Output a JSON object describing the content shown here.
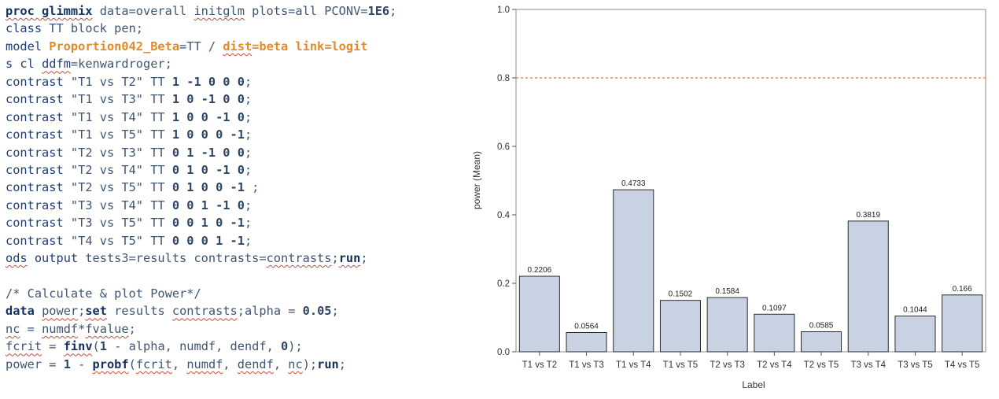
{
  "code": {
    "lines": [
      [
        {
          "t": "proc glimmix",
          "c": "kw sq"
        },
        {
          "t": " data=overall ",
          "c": "tx"
        },
        {
          "t": "initglm",
          "c": "tx sq"
        },
        {
          "t": " plots=all PCONV=",
          "c": "tx"
        },
        {
          "t": "1E6",
          "c": "num"
        },
        {
          "t": ";",
          "c": "tx"
        }
      ],
      [
        {
          "t": "class",
          "c": "blu"
        },
        {
          "t": " TT block pen;",
          "c": "tx"
        }
      ],
      [
        {
          "t": "model ",
          "c": "blu"
        },
        {
          "t": "Proportion042_Beta",
          "c": "or"
        },
        {
          "t": "=TT / ",
          "c": "tx"
        },
        {
          "t": "dist",
          "c": "or sq"
        },
        {
          "t": "=beta link=logit",
          "c": "or"
        }
      ],
      [
        {
          "t": "s cl ",
          "c": "blu"
        },
        {
          "t": "ddfm",
          "c": "blu sq"
        },
        {
          "t": "=kenwardroger;",
          "c": "tx"
        }
      ],
      [
        {
          "t": "contrast",
          "c": "blu"
        },
        {
          "t": " \"T1 vs T2\" TT ",
          "c": "tx"
        },
        {
          "t": "1 -1 0 0 0",
          "c": "num"
        },
        {
          "t": ";",
          "c": "tx"
        }
      ],
      [
        {
          "t": "contrast",
          "c": "blu"
        },
        {
          "t": " \"T1 vs T3\" TT ",
          "c": "tx"
        },
        {
          "t": "1 0 -1 0 0",
          "c": "num"
        },
        {
          "t": ";",
          "c": "tx"
        }
      ],
      [
        {
          "t": "contrast",
          "c": "blu"
        },
        {
          "t": " \"T1 vs T4\" TT ",
          "c": "tx"
        },
        {
          "t": "1 0 0 -1 0",
          "c": "num"
        },
        {
          "t": ";",
          "c": "tx"
        }
      ],
      [
        {
          "t": "contrast",
          "c": "blu"
        },
        {
          "t": " \"T1 vs T5\" TT ",
          "c": "tx"
        },
        {
          "t": "1 0 0 0 -1",
          "c": "num"
        },
        {
          "t": ";",
          "c": "tx"
        }
      ],
      [
        {
          "t": "contrast",
          "c": "blu"
        },
        {
          "t": " \"T2 vs T3\" TT ",
          "c": "tx"
        },
        {
          "t": "0 1 -1 0 0",
          "c": "num"
        },
        {
          "t": ";",
          "c": "tx"
        }
      ],
      [
        {
          "t": "contrast",
          "c": "blu"
        },
        {
          "t": " \"T2 vs T4\" TT ",
          "c": "tx"
        },
        {
          "t": "0 1 0 -1 0",
          "c": "num"
        },
        {
          "t": ";",
          "c": "tx"
        }
      ],
      [
        {
          "t": "contrast",
          "c": "blu"
        },
        {
          "t": " \"T2 vs T5\" TT ",
          "c": "tx"
        },
        {
          "t": "0 1 0 0 -1",
          "c": "num"
        },
        {
          "t": " ;",
          "c": "tx"
        }
      ],
      [
        {
          "t": "contrast",
          "c": "blu"
        },
        {
          "t": " \"T3 vs T4\" TT ",
          "c": "tx"
        },
        {
          "t": "0 0 1 -1 0",
          "c": "num"
        },
        {
          "t": ";",
          "c": "tx"
        }
      ],
      [
        {
          "t": "contrast",
          "c": "blu"
        },
        {
          "t": " \"T3 vs T5\" TT ",
          "c": "tx"
        },
        {
          "t": "0 0 1 0 -1",
          "c": "num"
        },
        {
          "t": ";",
          "c": "tx"
        }
      ],
      [
        {
          "t": "contrast",
          "c": "blu"
        },
        {
          "t": " \"T4 vs T5\" TT ",
          "c": "tx"
        },
        {
          "t": "0 0 0 1 -1",
          "c": "num"
        },
        {
          "t": ";",
          "c": "tx"
        }
      ],
      [
        {
          "t": "ods",
          "c": "blu sq"
        },
        {
          "t": " output ",
          "c": "blu"
        },
        {
          "t": "tests3=results contrasts=",
          "c": "tx"
        },
        {
          "t": "contrasts",
          "c": "tx sq"
        },
        {
          "t": ";",
          "c": "tx"
        },
        {
          "t": "run",
          "c": "kw sq"
        },
        {
          "t": ";",
          "c": "tx"
        }
      ],
      [],
      [
        {
          "t": "/* Calculate & plot Power*/",
          "c": "cm"
        }
      ],
      [
        {
          "t": "data",
          "c": "kw"
        },
        {
          "t": " ",
          "c": "tx"
        },
        {
          "t": "power",
          "c": "tx sq"
        },
        {
          "t": ";",
          "c": "tx"
        },
        {
          "t": "set",
          "c": "kw sq"
        },
        {
          "t": " results ",
          "c": "tx"
        },
        {
          "t": "contrasts",
          "c": "tx sq"
        },
        {
          "t": ";alpha = ",
          "c": "tx"
        },
        {
          "t": "0.05",
          "c": "num"
        },
        {
          "t": ";",
          "c": "tx"
        }
      ],
      [
        {
          "t": "nc",
          "c": "tx sq"
        },
        {
          "t": " = ",
          "c": "tx"
        },
        {
          "t": "numdf",
          "c": "tx sq"
        },
        {
          "t": "*",
          "c": "tx"
        },
        {
          "t": "fvalue",
          "c": "tx sq"
        },
        {
          "t": ";",
          "c": "tx"
        }
      ],
      [
        {
          "t": "fcrit",
          "c": "tx sq"
        },
        {
          "t": " = ",
          "c": "tx"
        },
        {
          "t": "finv",
          "c": "kw sq"
        },
        {
          "t": "(",
          "c": "tx"
        },
        {
          "t": "1",
          "c": "num"
        },
        {
          "t": " - alpha, numdf, dendf, ",
          "c": "tx"
        },
        {
          "t": "0",
          "c": "num"
        },
        {
          "t": ");",
          "c": "tx"
        }
      ],
      [
        {
          "t": "power = ",
          "c": "tx"
        },
        {
          "t": "1",
          "c": "num"
        },
        {
          "t": " - ",
          "c": "tx"
        },
        {
          "t": "probf",
          "c": "kw sq"
        },
        {
          "t": "(",
          "c": "tx"
        },
        {
          "t": "fcrit",
          "c": "tx sq"
        },
        {
          "t": ", ",
          "c": "tx"
        },
        {
          "t": "numdf",
          "c": "tx sq"
        },
        {
          "t": ", ",
          "c": "tx"
        },
        {
          "t": "dendf",
          "c": "tx sq"
        },
        {
          "t": ", ",
          "c": "tx"
        },
        {
          "t": "nc",
          "c": "tx sq"
        },
        {
          "t": ");",
          "c": "tx"
        },
        {
          "t": "run",
          "c": "kw"
        },
        {
          "t": ";",
          "c": "tx"
        }
      ]
    ]
  },
  "chart_data": {
    "type": "bar",
    "categories": [
      "T1 vs T2",
      "T1 vs T3",
      "T1 vs T4",
      "T1 vs T5",
      "T2 vs T3",
      "T2 vs T4",
      "T2 vs T5",
      "T3 vs T4",
      "T3 vs T5",
      "T4 vs T5"
    ],
    "values": [
      0.2206,
      0.0564,
      0.4733,
      0.1502,
      0.1584,
      0.1097,
      0.0585,
      0.3819,
      0.1044,
      0.166
    ],
    "data_labels": [
      "0.2206",
      "0.0564",
      "0.4733",
      "0.1502",
      "0.1584",
      "0.1097",
      "0.0585",
      "0.3819",
      "0.1044",
      "0.166"
    ],
    "xlabel": "Label",
    "ylabel": "power (Mean)",
    "ylim": [
      0,
      1.0
    ],
    "yticks": [
      "0.0",
      "0.2",
      "0.4",
      "0.6",
      "0.8",
      "1.0"
    ],
    "reference_line": 0.8,
    "reference_line_style": "dashed",
    "bar_color": "#c9d2e3",
    "bar_edge_color": "#2b2b2b",
    "reference_line_color": "#e07a3a",
    "grid": false
  }
}
